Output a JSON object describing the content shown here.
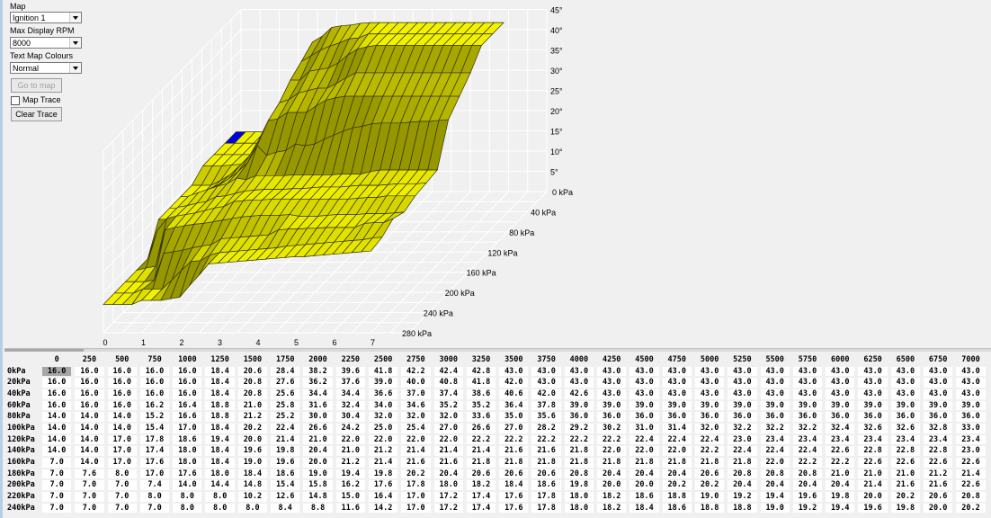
{
  "controls": {
    "map_label": "Map",
    "map_value": "Ignition 1",
    "rpm_label": "Max Display RPM",
    "rpm_value": "8000",
    "colours_label": "Text Map Colours",
    "colours_value": "Normal",
    "goto_button": "Go to map",
    "map_trace_label": "Map Trace",
    "map_trace_checked": false,
    "clear_trace_button": "Clear Trace"
  },
  "chart_data": {
    "type": "surface",
    "x_ticks": [
      "0",
      "1",
      "2",
      "3",
      "4",
      "5",
      "6",
      "7"
    ],
    "depth_ticks": [
      "0 kPa",
      "40 kPa",
      "80 kPa",
      "120 kPa",
      "160 kPa",
      "200 kPa",
      "240 kPa",
      "280 kPa"
    ],
    "z_ticks": [
      "45°",
      "40°",
      "35°",
      "30°",
      "25°",
      "20°",
      "15°",
      "10°",
      "5°"
    ],
    "z_range": [
      0,
      45
    ],
    "surface_color": "#eeee00",
    "shadow_color": "#9a9a00",
    "selected_color": "#0000e0"
  },
  "table": {
    "columns": [
      "0",
      "250",
      "500",
      "750",
      "1000",
      "1250",
      "1500",
      "1750",
      "2000",
      "2250",
      "2500",
      "2750",
      "3000",
      "3250",
      "3500",
      "3750",
      "4000",
      "4250",
      "4500",
      "4750",
      "5000",
      "5250",
      "5500",
      "5750",
      "6000",
      "6250",
      "6500",
      "6750",
      "7000"
    ],
    "selected": [
      0,
      0
    ],
    "rows": [
      {
        "label": "0kPa",
        "values": [
          "16.0",
          "16.0",
          "16.0",
          "16.0",
          "16.0",
          "18.4",
          "20.6",
          "28.4",
          "38.2",
          "39.6",
          "41.8",
          "42.2",
          "42.4",
          "42.8",
          "43.0",
          "43.0",
          "43.0",
          "43.0",
          "43.0",
          "43.0",
          "43.0",
          "43.0",
          "43.0",
          "43.0",
          "43.0",
          "43.0",
          "43.0",
          "43.0",
          "43.0"
        ]
      },
      {
        "label": "20kPa",
        "values": [
          "16.0",
          "16.0",
          "16.0",
          "16.0",
          "16.0",
          "18.4",
          "20.8",
          "27.6",
          "36.2",
          "37.6",
          "39.0",
          "40.0",
          "40.8",
          "41.8",
          "42.0",
          "43.0",
          "43.0",
          "43.0",
          "43.0",
          "43.0",
          "43.0",
          "43.0",
          "43.0",
          "43.0",
          "43.0",
          "43.0",
          "43.0",
          "43.0",
          "43.0"
        ]
      },
      {
        "label": "40kPa",
        "values": [
          "16.0",
          "16.0",
          "16.0",
          "16.0",
          "16.0",
          "18.4",
          "20.8",
          "25.6",
          "34.4",
          "34.4",
          "36.6",
          "37.0",
          "37.4",
          "38.6",
          "40.6",
          "42.0",
          "42.6",
          "43.0",
          "43.0",
          "43.0",
          "43.0",
          "43.0",
          "43.0",
          "43.0",
          "43.0",
          "43.0",
          "43.0",
          "43.0",
          "43.0"
        ]
      },
      {
        "label": "60kPa",
        "values": [
          "16.0",
          "16.0",
          "16.0",
          "16.2",
          "16.4",
          "18.8",
          "21.0",
          "25.8",
          "31.6",
          "32.4",
          "34.0",
          "34.6",
          "35.2",
          "35.2",
          "36.4",
          "37.8",
          "39.0",
          "39.0",
          "39.0",
          "39.0",
          "39.0",
          "39.0",
          "39.0",
          "39.0",
          "39.0",
          "39.0",
          "39.0",
          "39.0",
          "39.0"
        ]
      },
      {
        "label": "80kPa",
        "values": [
          "14.0",
          "14.0",
          "14.0",
          "15.2",
          "16.6",
          "18.8",
          "21.2",
          "25.2",
          "30.0",
          "30.4",
          "32.0",
          "32.0",
          "32.0",
          "33.6",
          "35.0",
          "35.6",
          "36.0",
          "36.0",
          "36.0",
          "36.0",
          "36.0",
          "36.0",
          "36.0",
          "36.0",
          "36.0",
          "36.0",
          "36.0",
          "36.0",
          "36.0"
        ]
      },
      {
        "label": "100kPa",
        "values": [
          "14.0",
          "14.0",
          "14.0",
          "15.4",
          "17.0",
          "18.4",
          "20.2",
          "22.4",
          "26.6",
          "24.2",
          "25.0",
          "25.4",
          "27.0",
          "26.6",
          "27.0",
          "28.2",
          "29.2",
          "30.2",
          "31.0",
          "31.4",
          "32.0",
          "32.2",
          "32.2",
          "32.2",
          "32.4",
          "32.6",
          "32.6",
          "32.8",
          "33.0"
        ]
      },
      {
        "label": "120kPa",
        "values": [
          "14.0",
          "14.0",
          "17.0",
          "17.8",
          "18.6",
          "19.4",
          "20.0",
          "21.4",
          "21.0",
          "22.0",
          "22.0",
          "22.0",
          "22.0",
          "22.2",
          "22.2",
          "22.2",
          "22.2",
          "22.2",
          "22.4",
          "22.4",
          "22.4",
          "23.0",
          "23.4",
          "23.4",
          "23.4",
          "23.4",
          "23.4",
          "23.4",
          "23.4"
        ]
      },
      {
        "label": "140kPa",
        "values": [
          "14.0",
          "14.0",
          "17.0",
          "17.4",
          "18.0",
          "18.4",
          "19.6",
          "19.8",
          "20.4",
          "21.0",
          "21.2",
          "21.4",
          "21.4",
          "21.4",
          "21.6",
          "21.6",
          "21.8",
          "22.0",
          "22.0",
          "22.0",
          "22.2",
          "22.4",
          "22.4",
          "22.4",
          "22.6",
          "22.8",
          "22.8",
          "22.8",
          "23.0"
        ]
      },
      {
        "label": "160kPa",
        "values": [
          "7.0",
          "14.0",
          "17.0",
          "17.6",
          "18.0",
          "18.4",
          "19.0",
          "19.6",
          "20.0",
          "21.2",
          "21.4",
          "21.6",
          "21.6",
          "21.8",
          "21.8",
          "21.8",
          "21.8",
          "21.8",
          "21.8",
          "21.8",
          "21.8",
          "21.8",
          "22.0",
          "22.2",
          "22.2",
          "22.6",
          "22.6",
          "22.6",
          "22.6"
        ]
      },
      {
        "label": "180kPa",
        "values": [
          "7.0",
          "7.6",
          "8.0",
          "17.0",
          "17.6",
          "18.0",
          "18.4",
          "18.6",
          "19.0",
          "19.4",
          "19.8",
          "20.2",
          "20.4",
          "20.6",
          "20.6",
          "20.6",
          "20.8",
          "20.4",
          "20.4",
          "20.4",
          "20.6",
          "20.8",
          "20.8",
          "20.8",
          "21.0",
          "21.0",
          "21.0",
          "21.2",
          "21.4"
        ]
      },
      {
        "label": "200kPa",
        "values": [
          "7.0",
          "7.0",
          "7.0",
          "7.4",
          "14.0",
          "14.4",
          "14.8",
          "15.4",
          "15.8",
          "16.2",
          "17.6",
          "17.8",
          "18.0",
          "18.2",
          "18.4",
          "18.6",
          "19.8",
          "20.0",
          "20.0",
          "20.2",
          "20.2",
          "20.4",
          "20.4",
          "20.4",
          "20.4",
          "21.4",
          "21.6",
          "21.6",
          "22.6"
        ]
      },
      {
        "label": "220kPa",
        "values": [
          "7.0",
          "7.0",
          "7.0",
          "8.0",
          "8.0",
          "8.0",
          "10.2",
          "12.6",
          "14.8",
          "15.0",
          "16.4",
          "17.0",
          "17.2",
          "17.4",
          "17.6",
          "17.8",
          "18.0",
          "18.2",
          "18.6",
          "18.8",
          "19.0",
          "19.2",
          "19.4",
          "19.6",
          "19.8",
          "20.0",
          "20.2",
          "20.6",
          "20.8"
        ]
      },
      {
        "label": "240kPa",
        "values": [
          "7.0",
          "7.0",
          "7.0",
          "7.0",
          "8.0",
          "8.0",
          "8.0",
          "8.4",
          "8.8",
          "11.6",
          "14.2",
          "17.0",
          "17.2",
          "17.4",
          "17.6",
          "17.8",
          "18.0",
          "18.2",
          "18.4",
          "18.6",
          "18.8",
          "18.8",
          "19.0",
          "19.2",
          "19.4",
          "19.6",
          "19.8",
          "20.0",
          "20.2"
        ]
      }
    ]
  }
}
